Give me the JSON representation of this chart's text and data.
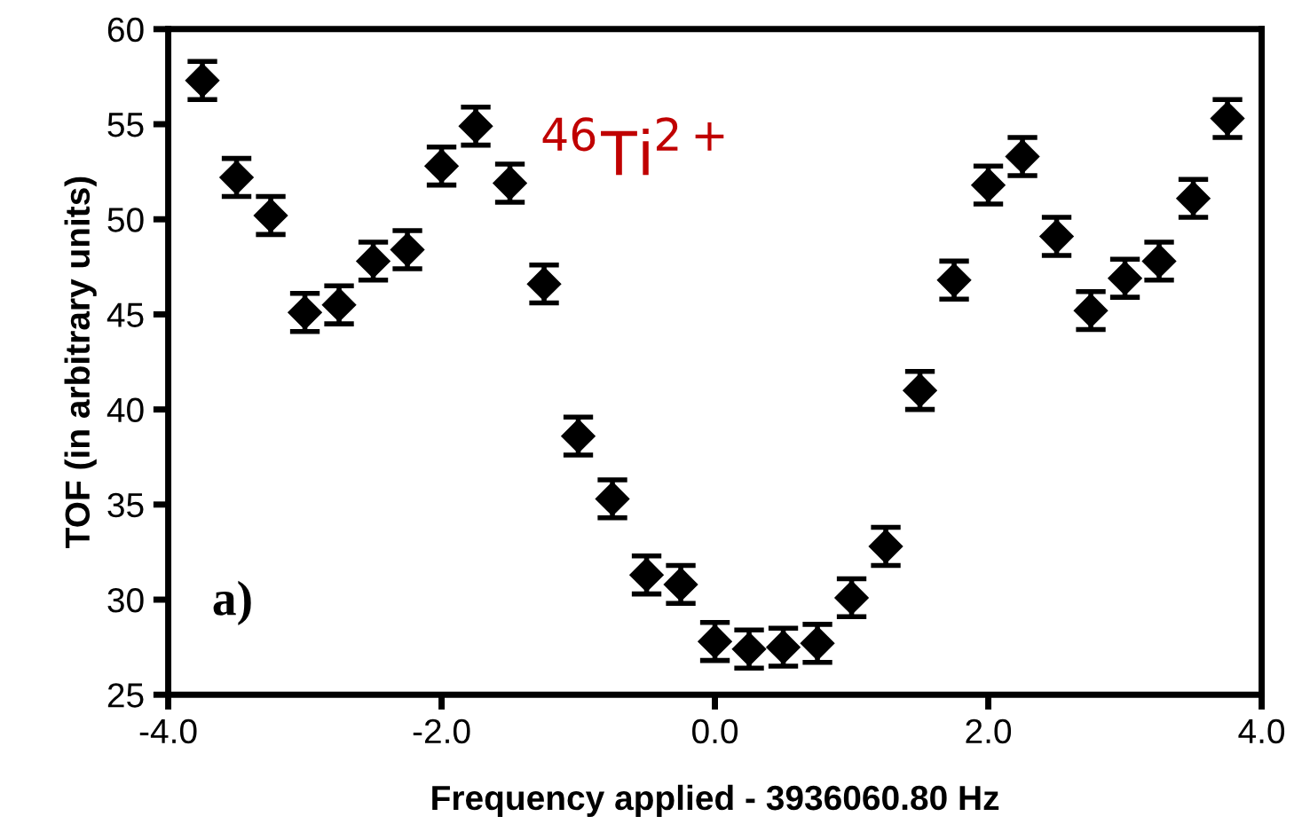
{
  "chart_data": {
    "type": "scatter",
    "xlabel": "Frequency applied - 3936060.80 Hz",
    "ylabel": "TOF (in arbitrary units)",
    "x": [
      -3.75,
      -3.5,
      -3.25,
      -3.0,
      -2.75,
      -2.5,
      -2.25,
      -2.0,
      -1.75,
      -1.5,
      -1.25,
      -1.0,
      -0.75,
      -0.5,
      -0.25,
      0.0,
      0.25,
      0.5,
      0.75,
      1.0,
      1.25,
      1.5,
      1.75,
      2.0,
      2.25,
      2.5,
      2.75,
      3.0,
      3.25,
      3.5,
      3.75
    ],
    "values": [
      57.3,
      52.2,
      50.2,
      45.1,
      45.5,
      47.8,
      48.4,
      52.8,
      54.9,
      51.9,
      46.6,
      38.6,
      35.3,
      31.3,
      30.8,
      27.8,
      27.4,
      27.5,
      27.7,
      30.1,
      32.8,
      41.0,
      46.8,
      51.8,
      53.3,
      49.1,
      45.2,
      46.9,
      47.8,
      51.1,
      55.3
    ],
    "errors": [
      1,
      1,
      1,
      1,
      1,
      1,
      1,
      1,
      1,
      1,
      1,
      1,
      1,
      1,
      1,
      1,
      1,
      1,
      1,
      1,
      1,
      1,
      1,
      1,
      1,
      1,
      1,
      1,
      1,
      1,
      1
    ],
    "color": "#000000",
    "marker": "diamond",
    "xlim": [
      -4.0,
      4.0
    ],
    "xticks": [
      {
        "value": -4,
        "label": "-4.0"
      },
      {
        "value": -2,
        "label": "-2.0"
      },
      {
        "value": 0,
        "label": "0.0"
      },
      {
        "value": 2,
        "label": "2.0"
      },
      {
        "value": 4,
        "label": "4.0"
      }
    ],
    "ylim": [
      25,
      60
    ],
    "yticks": [
      25,
      30,
      35,
      40,
      45,
      50,
      55,
      60
    ],
    "grid": false,
    "annotations": [
      "$^{46}$Ti$^{2+}$",
      "a)"
    ]
  }
}
